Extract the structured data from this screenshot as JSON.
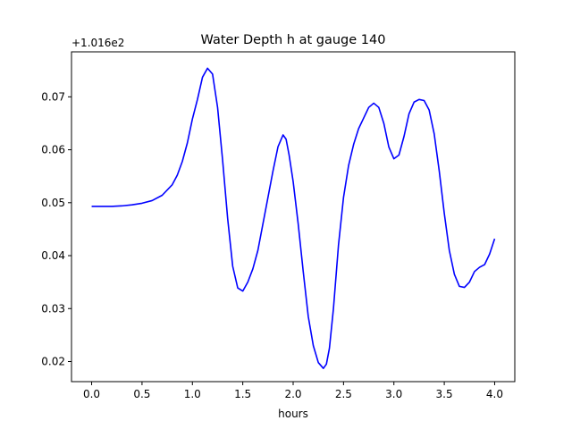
{
  "chart_data": {
    "type": "line",
    "title": "Water Depth h at gauge 140",
    "xlabel": "hours",
    "ylabel": "",
    "y_offset_text": "+1.016e2",
    "xlim": [
      -0.2,
      4.2
    ],
    "ylim": [
      0.0162,
      0.0785
    ],
    "x_ticks": [
      0.0,
      0.5,
      1.0,
      1.5,
      2.0,
      2.5,
      3.0,
      3.5,
      4.0
    ],
    "x_tick_labels": [
      "0.0",
      "0.5",
      "1.0",
      "1.5",
      "2.0",
      "2.5",
      "3.0",
      "3.5",
      "4.0"
    ],
    "y_ticks": [
      0.02,
      0.03,
      0.04,
      0.05,
      0.06,
      0.07
    ],
    "y_tick_labels": [
      "0.02",
      "0.03",
      "0.04",
      "0.05",
      "0.06",
      "0.07"
    ],
    "grid": false,
    "series": [
      {
        "color": "#0000ff",
        "x": [
          0.0,
          0.1,
          0.2,
          0.3,
          0.4,
          0.5,
          0.6,
          0.7,
          0.8,
          0.85,
          0.9,
          0.95,
          1.0,
          1.05,
          1.1,
          1.15,
          1.2,
          1.25,
          1.3,
          1.35,
          1.4,
          1.45,
          1.5,
          1.55,
          1.6,
          1.65,
          1.7,
          1.75,
          1.8,
          1.85,
          1.9,
          1.93,
          1.96,
          2.0,
          2.05,
          2.1,
          2.15,
          2.2,
          2.25,
          2.3,
          2.33,
          2.36,
          2.4,
          2.45,
          2.5,
          2.55,
          2.6,
          2.65,
          2.7,
          2.75,
          2.8,
          2.85,
          2.9,
          2.95,
          3.0,
          3.05,
          3.1,
          3.15,
          3.2,
          3.25,
          3.3,
          3.35,
          3.4,
          3.45,
          3.5,
          3.55,
          3.6,
          3.65,
          3.7,
          3.75,
          3.8,
          3.85,
          3.9,
          3.95,
          4.0
        ],
        "y": [
          0.0493,
          0.0493,
          0.0493,
          0.0494,
          0.0496,
          0.0499,
          0.0504,
          0.0514,
          0.0534,
          0.0552,
          0.0578,
          0.0613,
          0.0658,
          0.0695,
          0.0737,
          0.0754,
          0.0743,
          0.068,
          0.058,
          0.047,
          0.038,
          0.0339,
          0.0333,
          0.035,
          0.0375,
          0.041,
          0.046,
          0.051,
          0.056,
          0.0606,
          0.0628,
          0.062,
          0.059,
          0.054,
          0.046,
          0.037,
          0.0285,
          0.023,
          0.0198,
          0.0187,
          0.0195,
          0.0225,
          0.03,
          0.042,
          0.051,
          0.057,
          0.061,
          0.064,
          0.066,
          0.068,
          0.0688,
          0.068,
          0.065,
          0.0605,
          0.0583,
          0.059,
          0.0625,
          0.0668,
          0.069,
          0.0695,
          0.0693,
          0.0675,
          0.063,
          0.056,
          0.048,
          0.041,
          0.0365,
          0.0342,
          0.034,
          0.035,
          0.037,
          0.0378,
          0.0383,
          0.0403,
          0.0432
        ]
      }
    ]
  }
}
